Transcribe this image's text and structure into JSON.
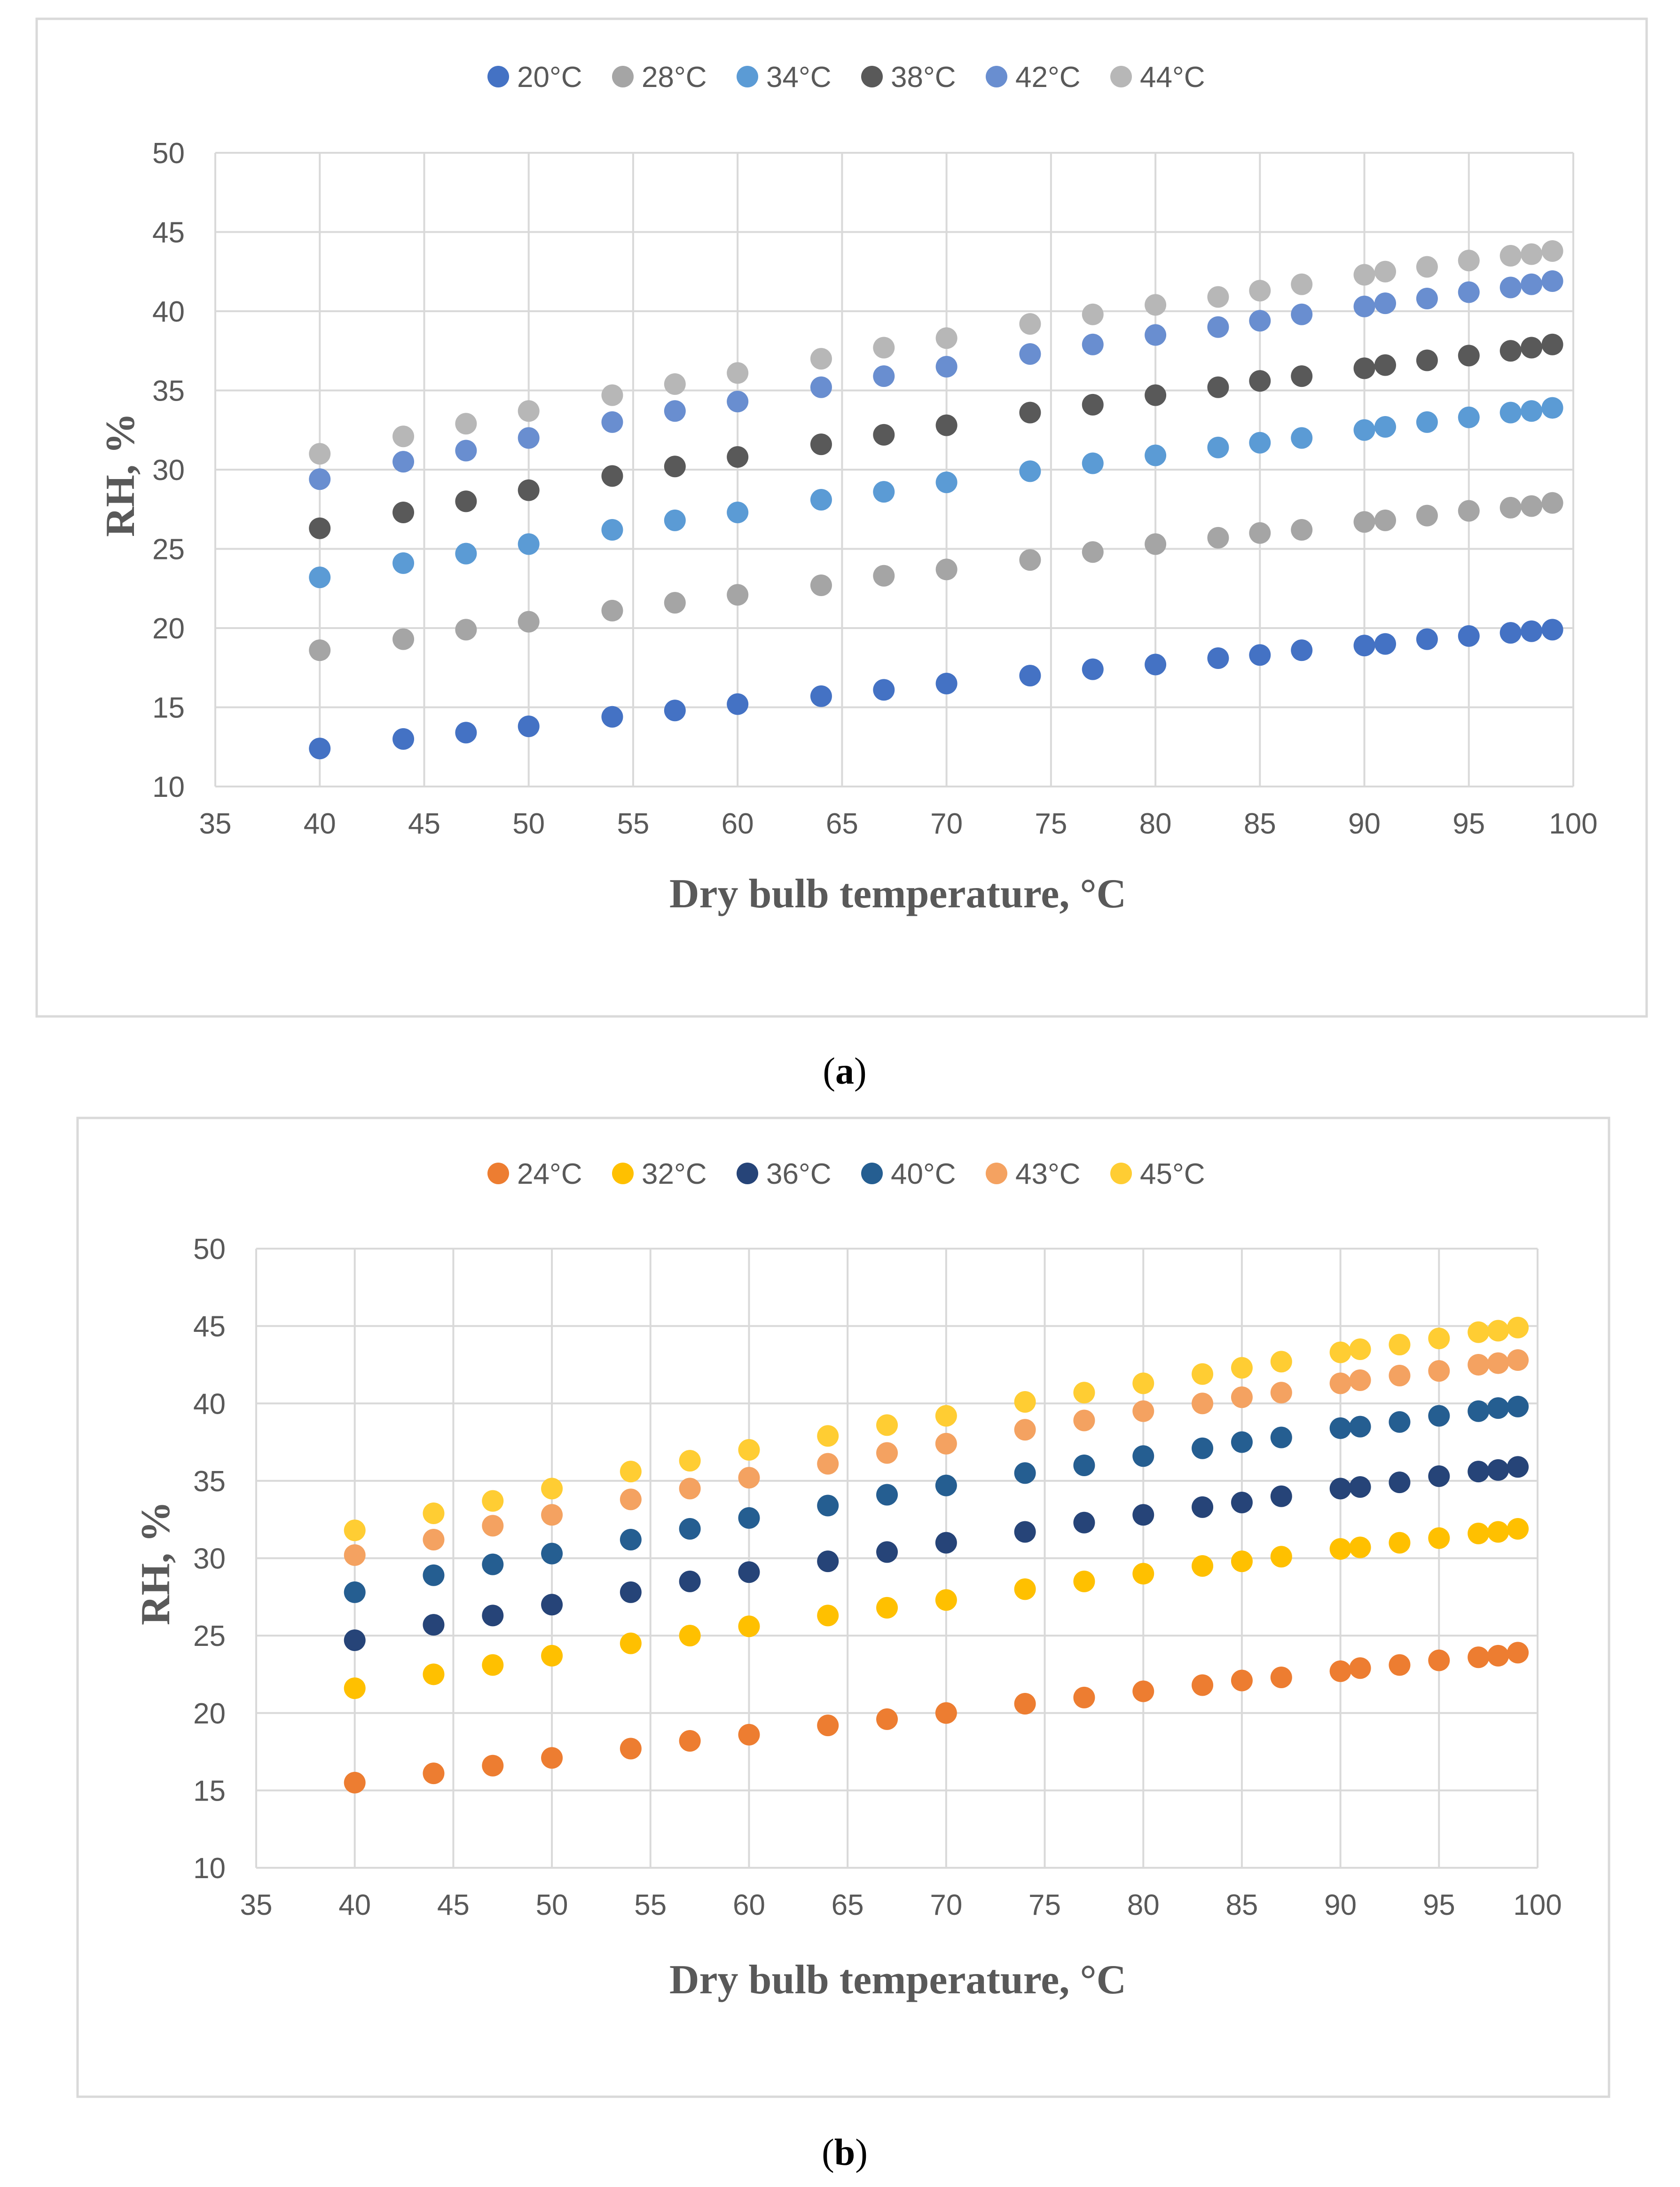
{
  "chart_data": [
    {
      "id": "a",
      "type": "scatter",
      "panel_label": "a",
      "title": "",
      "xlabel": "Dry bulb temperature, °C",
      "ylabel": "RH, %",
      "xlim": [
        35,
        100
      ],
      "ylim": [
        10,
        50
      ],
      "x_ticks": [
        35,
        40,
        45,
        50,
        55,
        60,
        65,
        70,
        75,
        80,
        85,
        90,
        95,
        100
      ],
      "y_ticks": [
        10,
        15,
        20,
        25,
        30,
        35,
        40,
        45,
        50
      ],
      "grid": true,
      "legend_position": "top",
      "x": [
        40,
        44,
        47,
        50,
        54,
        57,
        60,
        64,
        67,
        70,
        74,
        77,
        80,
        83,
        85,
        87,
        90,
        91,
        93,
        95,
        97,
        98,
        99
      ],
      "series": [
        {
          "name": "20°C",
          "color": "#4472C4",
          "values": [
            12.4,
            13.0,
            13.4,
            13.8,
            14.4,
            14.8,
            15.2,
            15.7,
            16.1,
            16.5,
            17.0,
            17.4,
            17.7,
            18.1,
            18.3,
            18.6,
            18.9,
            19.0,
            19.3,
            19.5,
            19.7,
            19.8,
            19.9
          ]
        },
        {
          "name": "28°C",
          "color": "#A5A5A5",
          "values": [
            18.6,
            19.3,
            19.9,
            20.4,
            21.1,
            21.6,
            22.1,
            22.7,
            23.3,
            23.7,
            24.3,
            24.8,
            25.3,
            25.7,
            26.0,
            26.2,
            26.7,
            26.8,
            27.1,
            27.4,
            27.6,
            27.7,
            27.9
          ]
        },
        {
          "name": "34°C",
          "color": "#5B9BD5",
          "values": [
            23.2,
            24.1,
            24.7,
            25.3,
            26.2,
            26.8,
            27.3,
            28.1,
            28.6,
            29.2,
            29.9,
            30.4,
            30.9,
            31.4,
            31.7,
            32.0,
            32.5,
            32.7,
            33.0,
            33.3,
            33.6,
            33.7,
            33.9
          ]
        },
        {
          "name": "38°C",
          "color": "#595959",
          "values": [
            26.3,
            27.3,
            28.0,
            28.7,
            29.6,
            30.2,
            30.8,
            31.6,
            32.2,
            32.8,
            33.6,
            34.1,
            34.7,
            35.2,
            35.6,
            35.9,
            36.4,
            36.6,
            36.9,
            37.2,
            37.5,
            37.7,
            37.9
          ]
        },
        {
          "name": "42°C",
          "color": "#698ED0",
          "values": [
            29.4,
            30.5,
            31.2,
            32.0,
            33.0,
            33.7,
            34.3,
            35.2,
            35.9,
            36.5,
            37.3,
            37.9,
            38.5,
            39.0,
            39.4,
            39.8,
            40.3,
            40.5,
            40.8,
            41.2,
            41.5,
            41.7,
            41.9
          ]
        },
        {
          "name": "44°C",
          "color": "#B7B7B7",
          "values": [
            31.0,
            32.1,
            32.9,
            33.7,
            34.7,
            35.4,
            36.1,
            37.0,
            37.7,
            38.3,
            39.2,
            39.8,
            40.4,
            40.9,
            41.3,
            41.7,
            42.3,
            42.5,
            42.8,
            43.2,
            43.5,
            43.6,
            43.8
          ]
        }
      ]
    },
    {
      "id": "b",
      "type": "scatter",
      "panel_label": "b",
      "title": "",
      "xlabel": "Dry bulb temperature, °C",
      "ylabel": "RH, %",
      "xlim": [
        35,
        100
      ],
      "ylim": [
        10,
        50
      ],
      "x_ticks": [
        35,
        40,
        45,
        50,
        55,
        60,
        65,
        70,
        75,
        80,
        85,
        90,
        95,
        100
      ],
      "y_ticks": [
        10,
        15,
        20,
        25,
        30,
        35,
        40,
        45,
        50
      ],
      "grid": true,
      "legend_position": "top",
      "x": [
        40,
        44,
        47,
        50,
        54,
        57,
        60,
        64,
        67,
        70,
        74,
        77,
        80,
        83,
        85,
        87,
        90,
        91,
        93,
        95,
        97,
        98,
        99
      ],
      "series": [
        {
          "name": "24°C",
          "color": "#ED7D31",
          "values": [
            15.5,
            16.1,
            16.6,
            17.1,
            17.7,
            18.2,
            18.6,
            19.2,
            19.6,
            20.0,
            20.6,
            21.0,
            21.4,
            21.8,
            22.1,
            22.3,
            22.7,
            22.9,
            23.1,
            23.4,
            23.6,
            23.7,
            23.9
          ]
        },
        {
          "name": "32°C",
          "color": "#FFC000",
          "values": [
            21.6,
            22.5,
            23.1,
            23.7,
            24.5,
            25.0,
            25.6,
            26.3,
            26.8,
            27.3,
            28.0,
            28.5,
            29.0,
            29.5,
            29.8,
            30.1,
            30.6,
            30.7,
            31.0,
            31.3,
            31.6,
            31.7,
            31.9
          ]
        },
        {
          "name": "36°C",
          "color": "#264478",
          "values": [
            24.7,
            25.7,
            26.3,
            27.0,
            27.8,
            28.5,
            29.1,
            29.8,
            30.4,
            31.0,
            31.7,
            32.3,
            32.8,
            33.3,
            33.6,
            34.0,
            34.5,
            34.6,
            34.9,
            35.3,
            35.6,
            35.7,
            35.9
          ]
        },
        {
          "name": "40°C",
          "color": "#255E91",
          "values": [
            27.8,
            28.9,
            29.6,
            30.3,
            31.2,
            31.9,
            32.6,
            33.4,
            34.1,
            34.7,
            35.5,
            36.0,
            36.6,
            37.1,
            37.5,
            37.8,
            38.4,
            38.5,
            38.8,
            39.2,
            39.5,
            39.7,
            39.8
          ]
        },
        {
          "name": "43°C",
          "color": "#F4A261",
          "values": [
            30.2,
            31.2,
            32.1,
            32.8,
            33.8,
            34.5,
            35.2,
            36.1,
            36.8,
            37.4,
            38.3,
            38.9,
            39.5,
            40.0,
            40.4,
            40.7,
            41.3,
            41.5,
            41.8,
            42.1,
            42.5,
            42.6,
            42.8
          ]
        },
        {
          "name": "45°C",
          "color": "#FFCD33",
          "values": [
            31.8,
            32.9,
            33.7,
            34.5,
            35.6,
            36.3,
            37.0,
            37.9,
            38.6,
            39.2,
            40.1,
            40.7,
            41.3,
            41.9,
            42.3,
            42.7,
            43.3,
            43.5,
            43.8,
            44.2,
            44.6,
            44.7,
            44.9
          ]
        }
      ]
    }
  ]
}
